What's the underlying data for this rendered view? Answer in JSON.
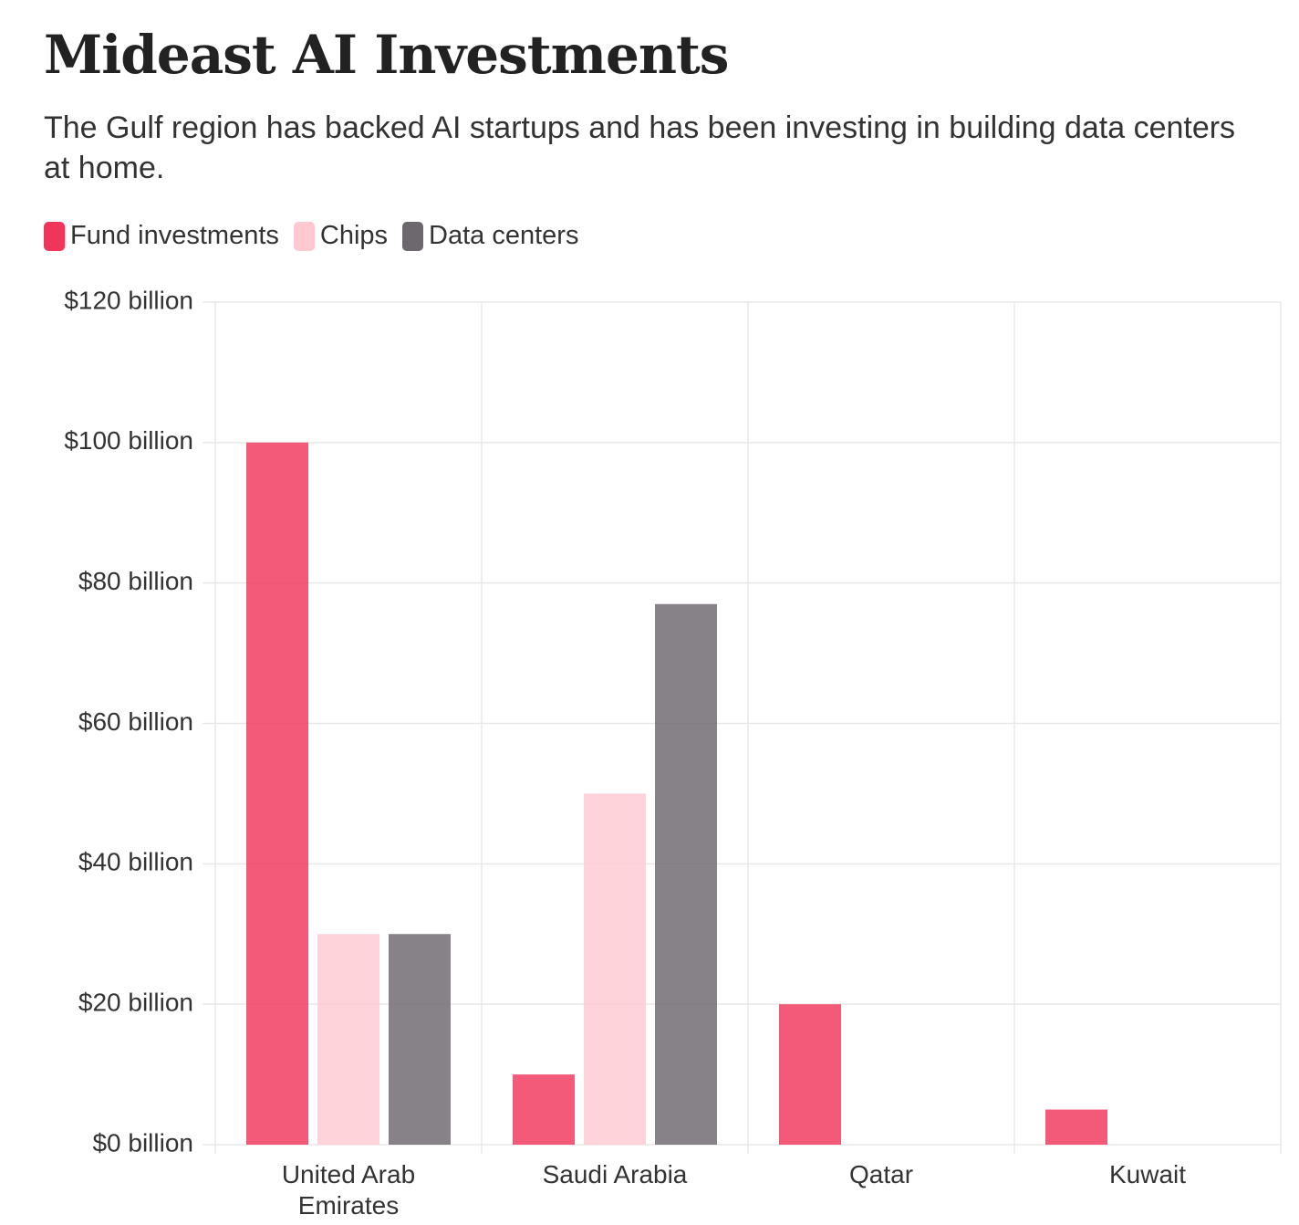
{
  "chart_data": {
    "type": "bar",
    "title": "Mideast AI Investments",
    "subtitle": "The Gulf region has backed AI startups and has been investing in building data centers at home.",
    "categories": [
      "United Arab Emirates",
      "Saudi Arabia",
      "Qatar",
      "Kuwait"
    ],
    "series": [
      {
        "name": "Fund investments",
        "color": "#f0355a",
        "values": [
          100,
          10,
          20,
          5
        ]
      },
      {
        "name": "Chips",
        "color": "#ffc9d2",
        "values": [
          30,
          50,
          null,
          null
        ]
      },
      {
        "name": "Data centers",
        "color": "#6d676e",
        "values": [
          30,
          77,
          null,
          null
        ]
      }
    ],
    "ylim": [
      0,
      120
    ],
    "yticks": [
      {
        "value": 0,
        "label": "$0 billion"
      },
      {
        "value": 20,
        "label": "$20 billion"
      },
      {
        "value": 40,
        "label": "$40 billion"
      },
      {
        "value": 60,
        "label": "$60 billion"
      },
      {
        "value": 80,
        "label": "$80 billion"
      },
      {
        "value": 100,
        "label": "$100 billion"
      },
      {
        "value": 120,
        "label": "$120 billion"
      }
    ],
    "grid": true,
    "legend": "top-left"
  }
}
